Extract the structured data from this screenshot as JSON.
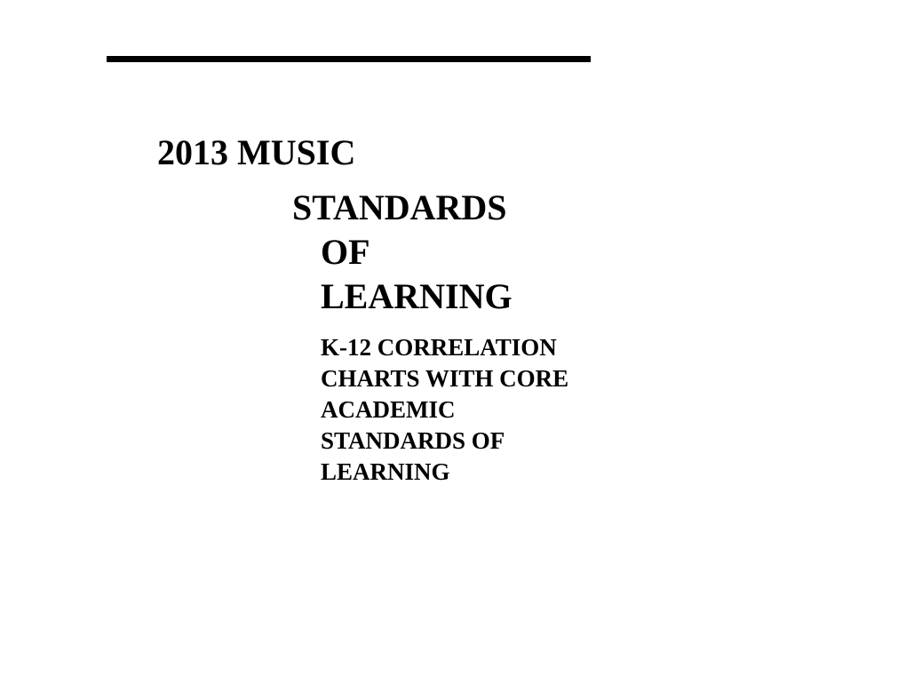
{
  "document": {
    "title_line1": "2013 MUSIC",
    "title_line2": "STANDARDS",
    "title_line3": "OF",
    "title_line4": "LEARNING",
    "subtitle": "K-12 CORRELATION CHARTS WITH CORE ACADEMIC STANDARDS OF LEARNING"
  },
  "styling": {
    "background_color": "#ffffff",
    "text_color": "#000000",
    "rule_color": "#000000",
    "title_fontsize": 40,
    "subtitle_fontsize": 27,
    "font_family": "Times New Roman",
    "rule_width": 545,
    "rule_height": 7
  }
}
